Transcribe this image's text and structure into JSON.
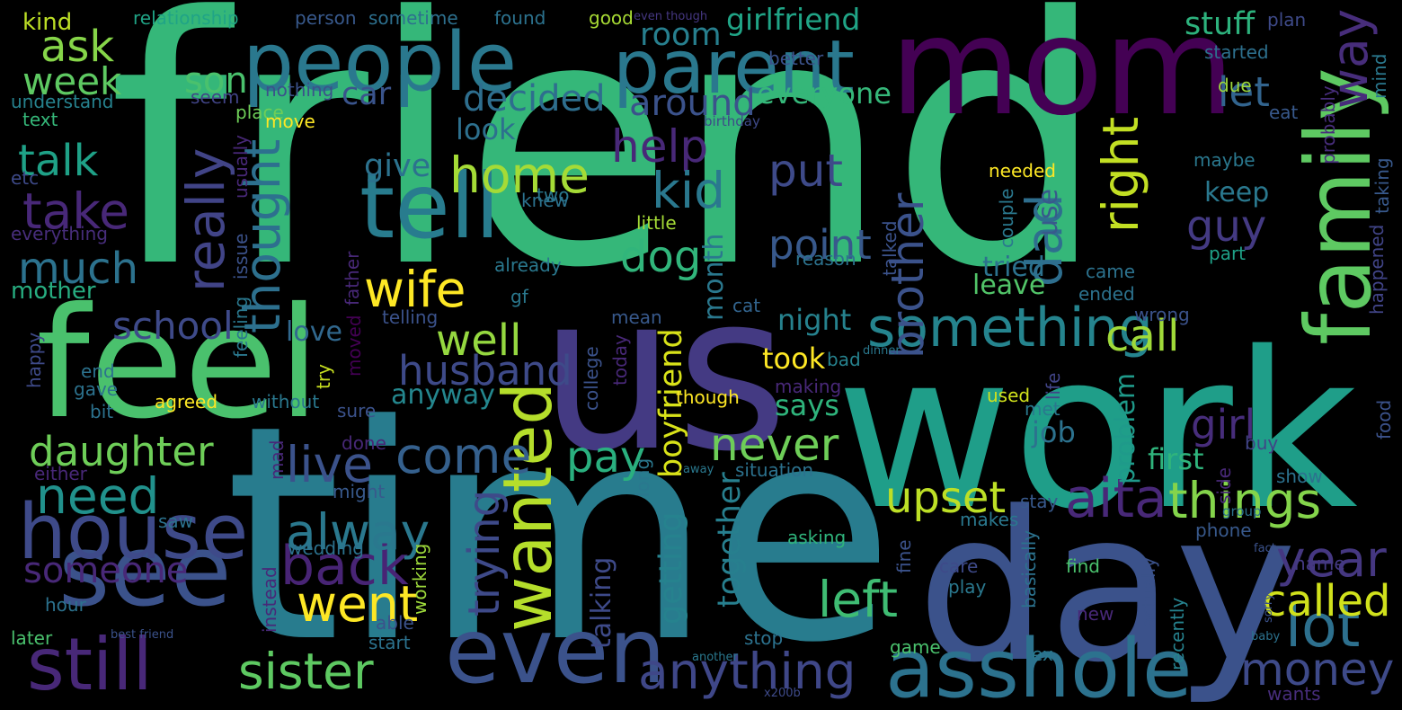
{
  "words": [
    {
      "text": "friend",
      "color": "#35b779"
    },
    {
      "text": "time",
      "color": "#287c8e"
    },
    {
      "text": "work",
      "color": "#1f9e89"
    },
    {
      "text": "us",
      "color": "#443a83"
    },
    {
      "text": "mom",
      "color": "#440154"
    },
    {
      "text": "day",
      "color": "#3b528b"
    },
    {
      "text": "feel",
      "color": "#4ac16d"
    },
    {
      "text": "people",
      "color": "#2a788e"
    },
    {
      "text": "parent",
      "color": "#2a788e"
    },
    {
      "text": "tell",
      "color": "#287c8e"
    },
    {
      "text": "see",
      "color": "#3b528b"
    },
    {
      "text": "family",
      "color": "#5ec962"
    },
    {
      "text": "house",
      "color": "#3e4a89"
    },
    {
      "text": "still",
      "color": "#482878"
    },
    {
      "text": "even",
      "color": "#3b528b"
    },
    {
      "text": "asshole",
      "color": "#2c728e"
    },
    {
      "text": "wanted",
      "color": "#b5de2b"
    },
    {
      "text": "something",
      "color": "#25848e"
    },
    {
      "text": "things",
      "color": "#84d44b"
    },
    {
      "text": "aita",
      "color": "#482878"
    },
    {
      "text": "back",
      "color": "#482475"
    },
    {
      "text": "went",
      "color": "#fde725"
    },
    {
      "text": "anything",
      "color": "#3f4788"
    },
    {
      "text": "sister",
      "color": "#5ec962"
    },
    {
      "text": "never",
      "color": "#6ece58"
    },
    {
      "text": "come",
      "color": "#35608d"
    },
    {
      "text": "live",
      "color": "#3b528b"
    },
    {
      "text": "husband",
      "color": "#3e4a89"
    },
    {
      "text": "money",
      "color": "#3e4a89"
    },
    {
      "text": "lot",
      "color": "#2d708e"
    },
    {
      "text": "year",
      "color": "#453781"
    },
    {
      "text": "called",
      "color": "#d0e11c"
    },
    {
      "text": "need",
      "color": "#21918c"
    },
    {
      "text": "daughter",
      "color": "#6ece58"
    },
    {
      "text": "alway",
      "color": "#2a788e"
    },
    {
      "text": "someone",
      "color": "#482878"
    },
    {
      "text": "left",
      "color": "#3fbc73"
    },
    {
      "text": "upset",
      "color": "#bddf26"
    },
    {
      "text": "trying",
      "color": "#3e4a89"
    },
    {
      "text": "really",
      "color": "#414487"
    },
    {
      "text": "thought",
      "color": "#2d708e"
    },
    {
      "text": "brother",
      "color": "#3b528b"
    },
    {
      "text": "dad",
      "color": "#2e6e8e"
    },
    {
      "text": "right",
      "color": "#c2df23"
    },
    {
      "text": "way",
      "color": "#472d7b"
    },
    {
      "text": "home",
      "color": "#a5db36"
    },
    {
      "text": "help",
      "color": "#482878"
    },
    {
      "text": "kid",
      "color": "#2a788e"
    },
    {
      "text": "put",
      "color": "#3e4a89"
    },
    {
      "text": "point",
      "color": "#38598c"
    },
    {
      "text": "wife",
      "color": "#fde725"
    },
    {
      "text": "ask",
      "color": "#86d549"
    },
    {
      "text": "week",
      "color": "#5ec962"
    },
    {
      "text": "talk",
      "color": "#1fa187"
    },
    {
      "text": "take",
      "color": "#482878"
    },
    {
      "text": "much",
      "color": "#2c728e"
    },
    {
      "text": "school",
      "color": "#3e4a89"
    },
    {
      "text": "well",
      "color": "#95d840"
    },
    {
      "text": "call",
      "color": "#a0da39"
    },
    {
      "text": "dog",
      "color": "#31b57b"
    },
    {
      "text": "guy",
      "color": "#443a83"
    },
    {
      "text": "girl",
      "color": "#472d7b"
    },
    {
      "text": "let",
      "color": "#32648e"
    },
    {
      "text": "pay",
      "color": "#2ab07f"
    },
    {
      "text": "around",
      "color": "#3b528b"
    },
    {
      "text": "decided",
      "color": "#2e6e8e"
    },
    {
      "text": "son",
      "color": "#4ac16d"
    },
    {
      "text": "car",
      "color": "#3a548c"
    },
    {
      "text": "room",
      "color": "#277f8e"
    },
    {
      "text": "stuff",
      "color": "#2db27d"
    },
    {
      "text": "everyone",
      "color": "#35b779"
    },
    {
      "text": "girlfriend",
      "color": "#20a486"
    },
    {
      "text": "give",
      "color": "#2c728e"
    },
    {
      "text": "look",
      "color": "#2d708e"
    },
    {
      "text": "month",
      "color": "#2a788e"
    },
    {
      "text": "boyfriend",
      "color": "#d8e219"
    },
    {
      "text": "together",
      "color": "#277f8e"
    },
    {
      "text": "getting",
      "color": "#26828e"
    },
    {
      "text": "talking",
      "color": "#3e4a89"
    },
    {
      "text": "says",
      "color": "#2fb47c"
    },
    {
      "text": "job",
      "color": "#2c728e"
    },
    {
      "text": "first",
      "color": "#2fb47c"
    },
    {
      "text": "problem",
      "color": "#1f9a8a"
    },
    {
      "text": "tried",
      "color": "#2c728e"
    },
    {
      "text": "leave",
      "color": "#52c569"
    },
    {
      "text": "keep",
      "color": "#2a788e"
    },
    {
      "text": "use",
      "color": "#38598c"
    },
    {
      "text": "night",
      "color": "#26828e"
    },
    {
      "text": "took",
      "color": "#fde725"
    },
    {
      "text": "love",
      "color": "#31688e"
    },
    {
      "text": "anyway",
      "color": "#24878e"
    },
    {
      "text": "mother",
      "color": "#27ad81"
    },
    {
      "text": "kind",
      "color": "#bddf26"
    },
    {
      "text": "relationship",
      "color": "#20a486"
    },
    {
      "text": "person",
      "color": "#38598c"
    },
    {
      "text": "sometime",
      "color": "#2d708e"
    },
    {
      "text": "found",
      "color": "#2c728e"
    },
    {
      "text": "good",
      "color": "#a8db34"
    },
    {
      "text": "even though",
      "color": "#453781"
    },
    {
      "text": "better",
      "color": "#3b528b"
    },
    {
      "text": "plan",
      "color": "#3e4a89"
    },
    {
      "text": "started",
      "color": "#2d708e"
    },
    {
      "text": "due",
      "color": "#9dd93b"
    },
    {
      "text": "probably",
      "color": "#472d7b"
    },
    {
      "text": "mind",
      "color": "#2a788e"
    },
    {
      "text": "understand",
      "color": "#26828e"
    },
    {
      "text": "text",
      "color": "#35b779"
    },
    {
      "text": "nothing",
      "color": "#3b528b"
    },
    {
      "text": "seem",
      "color": "#414487"
    },
    {
      "text": "place",
      "color": "#6ece58"
    },
    {
      "text": "move",
      "color": "#fde725"
    },
    {
      "text": "birthday",
      "color": "#3e4a89"
    },
    {
      "text": "eat",
      "color": "#38598c"
    },
    {
      "text": "maybe",
      "color": "#2a788e"
    },
    {
      "text": "taking",
      "color": "#38598c"
    },
    {
      "text": "happened",
      "color": "#414487"
    },
    {
      "text": "needed",
      "color": "#fde725"
    },
    {
      "text": "two",
      "color": "#2a788e"
    },
    {
      "text": "knew",
      "color": "#2c728e"
    },
    {
      "text": "little",
      "color": "#a5db36"
    },
    {
      "text": "etc",
      "color": "#3e4a89"
    },
    {
      "text": "usually",
      "color": "#482878"
    },
    {
      "text": "everything",
      "color": "#472d7b"
    },
    {
      "text": "couple",
      "color": "#2a788e"
    },
    {
      "text": "talked",
      "color": "#3b528b"
    },
    {
      "text": "reason",
      "color": "#2c728e"
    },
    {
      "text": "part",
      "color": "#1fa187"
    },
    {
      "text": "already",
      "color": "#2a788e"
    },
    {
      "text": "issue",
      "color": "#3b528b"
    },
    {
      "text": "feeling",
      "color": "#2a788e"
    },
    {
      "text": "father",
      "color": "#482878"
    },
    {
      "text": "gf",
      "color": "#2a788e"
    },
    {
      "text": "came",
      "color": "#2c728e"
    },
    {
      "text": "ended",
      "color": "#2c728e"
    },
    {
      "text": "telling",
      "color": "#3b528b"
    },
    {
      "text": "mean",
      "color": "#38598c"
    },
    {
      "text": "wrong",
      "color": "#3b528b"
    },
    {
      "text": "cat",
      "color": "#32648e"
    },
    {
      "text": "college",
      "color": "#3b528b"
    },
    {
      "text": "today",
      "color": "#482878"
    },
    {
      "text": "try",
      "color": "#c8e020"
    },
    {
      "text": "moved",
      "color": "#440154"
    },
    {
      "text": "dinner",
      "color": "#2a788e"
    },
    {
      "text": "bad",
      "color": "#26828e"
    },
    {
      "text": "making",
      "color": "#482878"
    },
    {
      "text": "happy",
      "color": "#3e4a89"
    },
    {
      "text": "end",
      "color": "#2c728e"
    },
    {
      "text": "gave",
      "color": "#2c728e"
    },
    {
      "text": "bit",
      "color": "#2c728e"
    },
    {
      "text": "agreed",
      "color": "#fde725"
    },
    {
      "text": "without",
      "color": "#2a788e"
    },
    {
      "text": "sure",
      "color": "#3b528b"
    },
    {
      "text": "though",
      "color": "#fde725"
    },
    {
      "text": "used",
      "color": "#d0e11c"
    },
    {
      "text": "life",
      "color": "#414487"
    },
    {
      "text": "met",
      "color": "#2a788e"
    },
    {
      "text": "food",
      "color": "#3b528b"
    },
    {
      "text": "buy",
      "color": "#414487"
    },
    {
      "text": "done",
      "color": "#482878"
    },
    {
      "text": "mad",
      "color": "#482878"
    },
    {
      "text": "either",
      "color": "#482878"
    },
    {
      "text": "might",
      "color": "#38598c"
    },
    {
      "text": "away",
      "color": "#2a788e"
    },
    {
      "text": "situation",
      "color": "#2c728e"
    },
    {
      "text": "long",
      "color": "#2a788e"
    },
    {
      "text": "show",
      "color": "#2c728e"
    },
    {
      "text": "side",
      "color": "#482878"
    },
    {
      "text": "stay",
      "color": "#38598c"
    },
    {
      "text": "group",
      "color": "#2c728e"
    },
    {
      "text": "saw",
      "color": "#2c728e"
    },
    {
      "text": "wedding",
      "color": "#2c728e"
    },
    {
      "text": "makes",
      "color": "#2a788e"
    },
    {
      "text": "asking",
      "color": "#2fb47c"
    },
    {
      "text": "fine",
      "color": "#3b528b"
    },
    {
      "text": "basically",
      "color": "#2c728e"
    },
    {
      "text": "phone",
      "color": "#38598c"
    },
    {
      "text": "fact",
      "color": "#3b528b"
    },
    {
      "text": "name",
      "color": "#443a83"
    },
    {
      "text": "instead",
      "color": "#482878"
    },
    {
      "text": "working",
      "color": "#9dd93b"
    },
    {
      "text": "care",
      "color": "#3e4a89"
    },
    {
      "text": "find",
      "color": "#4ac16d"
    },
    {
      "text": "play",
      "color": "#2a788e"
    },
    {
      "text": "actually",
      "color": "#3b528b"
    },
    {
      "text": "recently",
      "color": "#26828e"
    },
    {
      "text": "new",
      "color": "#482878"
    },
    {
      "text": "sorry",
      "color": "#3b528b"
    },
    {
      "text": "hour",
      "color": "#2c728e"
    },
    {
      "text": "later",
      "color": "#4ac16d"
    },
    {
      "text": "able",
      "color": "#3b528b"
    },
    {
      "text": "start",
      "color": "#2c728e"
    },
    {
      "text": "stop",
      "color": "#2c728e"
    },
    {
      "text": "game",
      "color": "#4ac16d"
    },
    {
      "text": "ex",
      "color": "#2a788e"
    },
    {
      "text": "another",
      "color": "#2a788e"
    },
    {
      "text": "best friend",
      "color": "#3b528b"
    },
    {
      "text": "x200b",
      "color": "#3e4a89"
    },
    {
      "text": "baby",
      "color": "#2c728e"
    },
    {
      "text": "wants",
      "color": "#472d7b"
    }
  ]
}
